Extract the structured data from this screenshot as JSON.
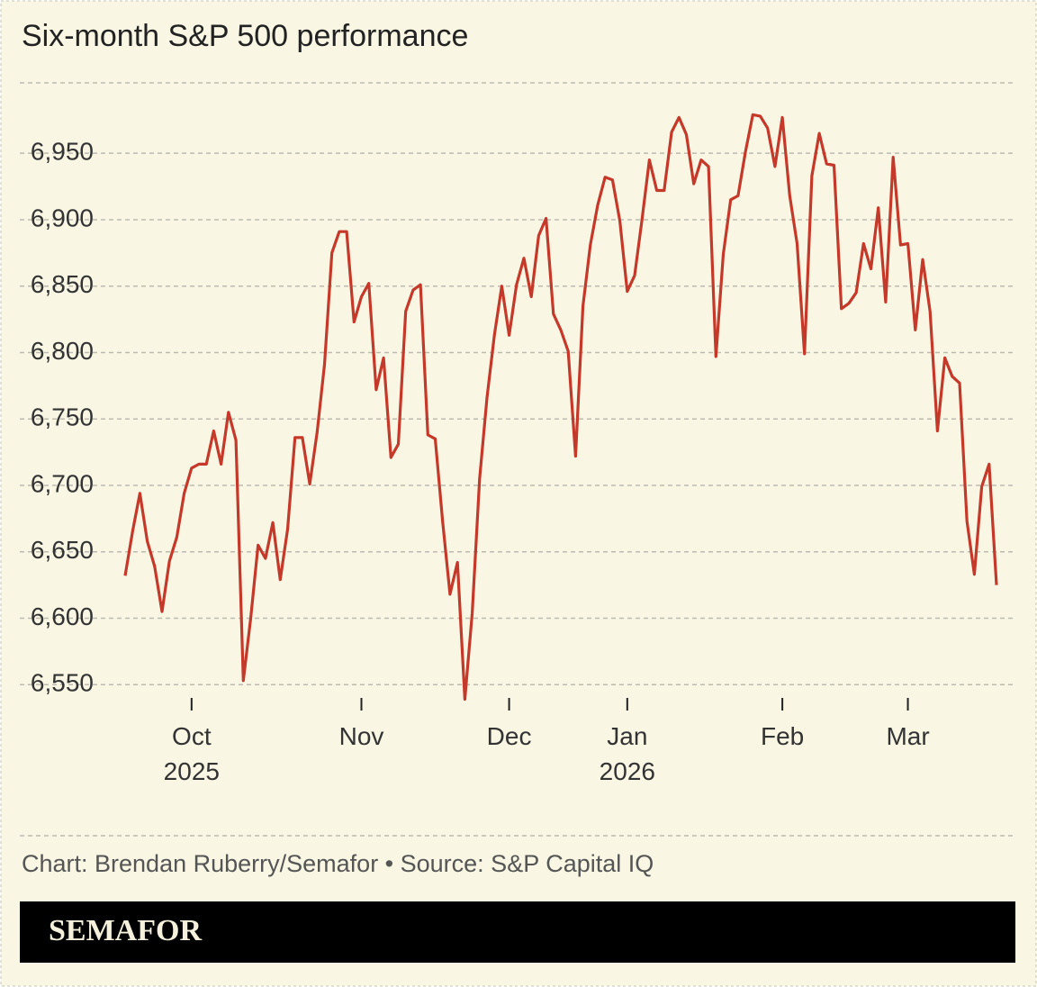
{
  "chart_data": {
    "type": "line",
    "title": "Six-month S&P 500 performance",
    "source": "Chart: Brendan Ruberry/Semafor • Source: S&P Capital IQ",
    "brand": "SEMAFOR",
    "categories": [
      null,
      null,
      null,
      null,
      null,
      null,
      null,
      null,
      null,
      "Oct\n2025",
      null,
      null,
      null,
      null,
      null,
      null,
      null,
      null,
      null,
      null,
      null,
      null,
      null,
      null,
      null,
      null,
      null,
      null,
      null,
      null,
      null,
      null,
      "Nov",
      null,
      null,
      null,
      null,
      null,
      null,
      null,
      null,
      null,
      null,
      null,
      null,
      null,
      null,
      null,
      null,
      null,
      null,
      null,
      "Dec",
      null,
      null,
      null,
      null,
      null,
      null,
      null,
      null,
      null,
      null,
      null,
      null,
      null,
      null,
      null,
      "Jan\n2026",
      null,
      null,
      null,
      null,
      null,
      null,
      null,
      null,
      null,
      null,
      null,
      null,
      null,
      null,
      null,
      null,
      null,
      null,
      null,
      null,
      "Feb",
      null,
      null,
      null,
      null,
      null,
      null,
      null,
      null,
      null,
      null,
      null,
      null,
      null,
      null,
      null,
      null,
      "Mar",
      null,
      null,
      null,
      null,
      null,
      null,
      null,
      null,
      null,
      null,
      null,
      null
    ],
    "series": [
      {
        "name": "S&P 500",
        "color": "#c4392a",
        "values": [
          6632,
          6665,
          6694,
          6658,
          6639,
          6605,
          6643,
          6661,
          6694,
          6713,
          6716,
          6716,
          6741,
          6716,
          6755,
          6734,
          6553,
          6600,
          6655,
          6645,
          6672,
          6629,
          6667,
          6736,
          6736,
          6701,
          6740,
          6791,
          6875,
          6891,
          6891,
          6823,
          6842,
          6852,
          6772,
          6796,
          6721,
          6731,
          6831,
          6847,
          6851,
          6738,
          6735,
          6673,
          6618,
          6642,
          6539,
          6604,
          6705,
          6766,
          6813,
          6850,
          6813,
          6851,
          6871,
          6842,
          6888,
          6901,
          6829,
          6817,
          6801,
          6722,
          6835,
          6881,
          6911,
          6932,
          6930,
          6899,
          6846,
          6858,
          6900,
          6945,
          6922,
          6922,
          6966,
          6977,
          6964,
          6927,
          6945,
          6940,
          6797,
          6874,
          6915,
          6918,
          6951,
          6979,
          6978,
          6969,
          6940,
          6977,
          6918,
          6882,
          6799,
          6933,
          6965,
          6942,
          6941,
          6833,
          6837,
          6845,
          6882,
          6863,
          6909,
          6838,
          6947,
          6881,
          6882,
          6817,
          6870,
          6831,
          6741,
          6796,
          6782,
          6777,
          6673,
          6633,
          6699,
          6716,
          6625
        ]
      }
    ],
    "ylim": [
      6540,
      7003
    ],
    "yticks": [
      {
        "value": 6550,
        "label": "6,550"
      },
      {
        "value": 6600,
        "label": "6,600"
      },
      {
        "value": 6650,
        "label": "6,650"
      },
      {
        "value": 6700,
        "label": "6,700"
      },
      {
        "value": 6750,
        "label": "6,750"
      },
      {
        "value": 6800,
        "label": "6,800"
      },
      {
        "value": 6850,
        "label": "6,850"
      },
      {
        "value": 6900,
        "label": "6,900"
      },
      {
        "value": 6950,
        "label": "6,950"
      }
    ],
    "grid": true
  }
}
